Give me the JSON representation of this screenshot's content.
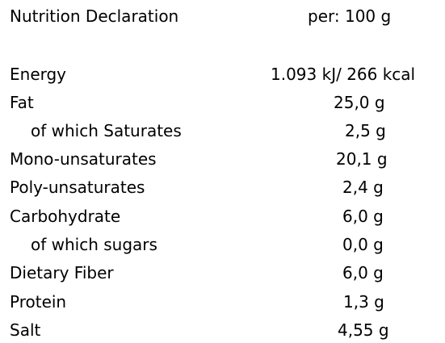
{
  "header": {
    "title": "Nutrition Declaration",
    "per": "per: 100 g"
  },
  "table": {
    "rows": [
      [
        "Energy",
        "1.093 kJ/ 266 kcal"
      ],
      [
        "Fat",
        "25,0 g"
      ],
      [
        "of which Saturates",
        "2,5 g"
      ],
      [
        "Mono-unsaturates",
        "20,1 g"
      ],
      [
        "Poly-unsaturates",
        "2,4 g"
      ],
      [
        "Carbohydrate",
        "6,0 g"
      ],
      [
        "of which sugars",
        "0,0 g"
      ],
      [
        "Dietary Fiber",
        "6,0 g"
      ],
      [
        "Protein",
        "1,3 g"
      ],
      [
        "Salt",
        "4,55 g"
      ]
    ]
  }
}
